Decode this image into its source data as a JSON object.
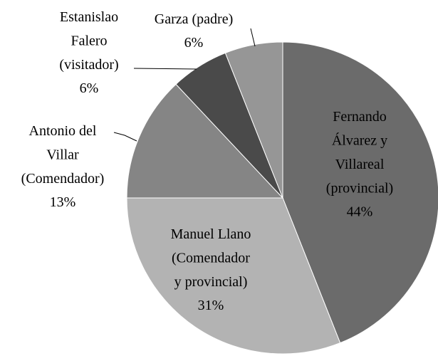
{
  "chart_data": {
    "type": "pie",
    "categories": [
      "Fernando Álvarez y Villareal (provincial)",
      "Manuel Llano (Comendador y provincial)",
      "Antonio del Villar (Comendador)",
      "Estanislao Falero (visitador)",
      "Garza (padre)"
    ],
    "values": [
      44,
      31,
      13,
      6,
      6
    ],
    "value_labels": [
      "44%",
      "31%",
      "13%",
      "6%",
      "6%"
    ],
    "colors": [
      "#6b6b6b",
      "#b3b3b3",
      "#858585",
      "#4a4a4a",
      "#969696"
    ]
  }
}
